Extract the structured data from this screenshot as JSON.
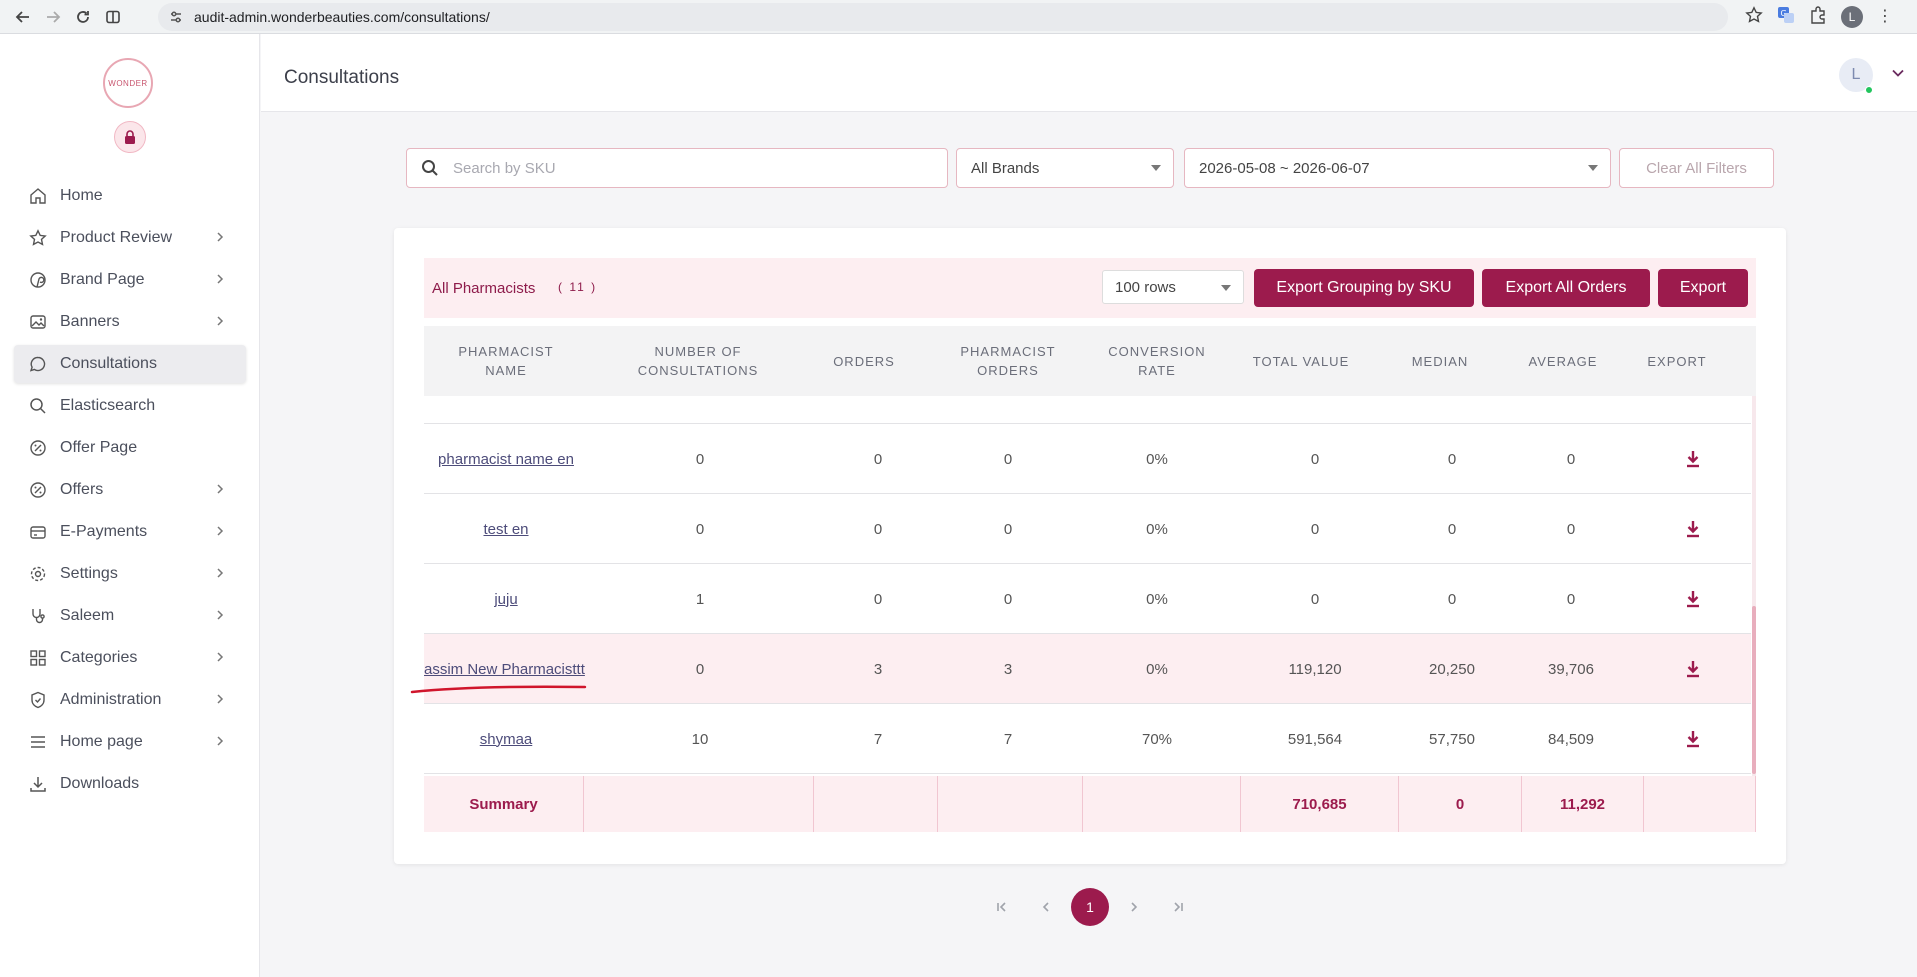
{
  "browser": {
    "url": "audit-admin.wonderbeauties.com/consultations/",
    "profile_initial": "L"
  },
  "sidebar": {
    "logo_text": "WONDER",
    "items": [
      {
        "label": "Home",
        "icon": "home-icon",
        "chevron": false
      },
      {
        "label": "Product Review",
        "icon": "star-icon",
        "chevron": true
      },
      {
        "label": "Brand Page",
        "icon": "pinterest-like-icon",
        "chevron": true
      },
      {
        "label": "Banners",
        "icon": "image-icon",
        "chevron": true
      },
      {
        "label": "Consultations",
        "icon": "chat-bubble-icon",
        "chevron": false,
        "active": true
      },
      {
        "label": "Elasticsearch",
        "icon": "search-icon",
        "chevron": false
      },
      {
        "label": "Offer Page",
        "icon": "discount-icon",
        "chevron": false
      },
      {
        "label": "Offers",
        "icon": "discount-icon",
        "chevron": true
      },
      {
        "label": "E-Payments",
        "icon": "wallet-icon",
        "chevron": true
      },
      {
        "label": "Settings",
        "icon": "gear-icon",
        "chevron": true
      },
      {
        "label": "Saleem",
        "icon": "stethoscope-icon",
        "chevron": true
      },
      {
        "label": "Categories",
        "icon": "grid-icon",
        "chevron": true
      },
      {
        "label": "Administration",
        "icon": "shield-icon",
        "chevron": true
      },
      {
        "label": "Home page",
        "icon": "menu-icon",
        "chevron": true
      },
      {
        "label": "Downloads",
        "icon": "download-icon",
        "chevron": false
      }
    ]
  },
  "header": {
    "title": "Consultations",
    "avatar_initial": "L"
  },
  "filters": {
    "search_placeholder": "Search by SKU",
    "brand_select": "All Brands",
    "date_range": "2026-05-08 ~ 2026-06-07",
    "clear_label": "Clear All Filters"
  },
  "card": {
    "title": "All Pharmacists",
    "count": "( 11 )",
    "rows_select": "100 rows",
    "export_grouping_label": "Export Grouping by SKU",
    "export_all_label": "Export All Orders",
    "export_label": "Export"
  },
  "table": {
    "headers": {
      "name": [
        "PHARMACIST",
        "NAME"
      ],
      "consultations": [
        "NUMBER OF",
        "CONSULTATIONS"
      ],
      "orders": [
        "ORDERS"
      ],
      "pharmacist_orders": [
        "PHARMACIST",
        "ORDERS"
      ],
      "conversion": [
        "CONVERSION",
        "RATE"
      ],
      "total": [
        "TOTAL VALUE"
      ],
      "median": [
        "MEDIAN"
      ],
      "average": [
        "AVERAGE"
      ],
      "export": [
        "EXPORT"
      ]
    },
    "rows": [
      {
        "name": "pharmacist name en",
        "consultations": "0",
        "orders": "0",
        "pharmacist_orders": "0",
        "conversion": "0%",
        "total": "0",
        "median": "0",
        "average": "0"
      },
      {
        "name": "test en",
        "consultations": "0",
        "orders": "0",
        "pharmacist_orders": "0",
        "conversion": "0%",
        "total": "0",
        "median": "0",
        "average": "0"
      },
      {
        "name": "juju",
        "consultations": "1",
        "orders": "0",
        "pharmacist_orders": "0",
        "conversion": "0%",
        "total": "0",
        "median": "0",
        "average": "0"
      },
      {
        "name": "assim New Pharmacisttt",
        "consultations": "0",
        "orders": "3",
        "pharmacist_orders": "3",
        "conversion": "0%",
        "total": "119,120",
        "median": "20,250",
        "average": "39,706",
        "highlighted": true
      },
      {
        "name": "shymaa",
        "consultations": "10",
        "orders": "7",
        "pharmacist_orders": "7",
        "conversion": "70%",
        "total": "591,564",
        "median": "57,750",
        "average": "84,509"
      }
    ],
    "summary": {
      "label": "Summary",
      "total": "710,685",
      "median": "0",
      "average": "11,292"
    }
  },
  "pagination": {
    "current_page": "1",
    "first": "|<",
    "prev": "<",
    "next": ">",
    "last": ">|"
  },
  "colors": {
    "brand": "#9c1b4d",
    "brand_light": "#fdeef1",
    "annotation": "#d0152c"
  }
}
